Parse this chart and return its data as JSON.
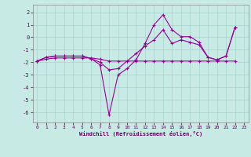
{
  "xlabel": "Windchill (Refroidissement éolien,°C)",
  "background_color": "#c8eae4",
  "grid_color": "#a8d4cc",
  "line_color": "#990099",
  "xlim": [
    -0.5,
    23.5
  ],
  "ylim": [
    -6.8,
    2.6
  ],
  "yticks": [
    -6,
    -5,
    -4,
    -3,
    -2,
    -1,
    0,
    1,
    2
  ],
  "xticks": [
    0,
    1,
    2,
    3,
    4,
    5,
    6,
    7,
    8,
    9,
    10,
    11,
    12,
    13,
    14,
    15,
    16,
    17,
    18,
    19,
    20,
    21,
    22,
    23
  ],
  "curve1_x": [
    0,
    1,
    2,
    3,
    4,
    5,
    6,
    7,
    8,
    9,
    10,
    11,
    12,
    13,
    14,
    15,
    16,
    17,
    18,
    19,
    20,
    21,
    22
  ],
  "curve1_y": [
    -1.9,
    -1.75,
    -1.65,
    -1.65,
    -1.65,
    -1.65,
    -1.65,
    -1.75,
    -1.9,
    -1.9,
    -1.9,
    -1.9,
    -1.9,
    -1.9,
    -1.9,
    -1.9,
    -1.9,
    -1.9,
    -1.9,
    -1.9,
    -1.9,
    -1.9,
    -1.9
  ],
  "curve2_x": [
    0,
    1,
    2,
    3,
    4,
    5,
    6,
    7,
    8,
    9,
    10,
    11,
    12,
    13,
    14,
    15,
    16,
    17,
    18,
    19,
    20,
    21,
    22
  ],
  "curve2_y": [
    -1.9,
    -1.6,
    -1.5,
    -1.5,
    -1.5,
    -1.5,
    -1.7,
    -2.0,
    -2.6,
    -2.5,
    -1.9,
    -1.3,
    -0.7,
    -0.2,
    0.6,
    -0.5,
    -0.2,
    -0.4,
    -0.6,
    -1.6,
    -1.8,
    -1.5,
    0.8
  ],
  "curve3_x": [
    0,
    1,
    2,
    3,
    4,
    5,
    6,
    7,
    8,
    9,
    10,
    11,
    12,
    13,
    14,
    15,
    16,
    17,
    18,
    19,
    20,
    21,
    22
  ],
  "curve3_y": [
    -1.9,
    -1.6,
    -1.5,
    -1.5,
    -1.5,
    -1.5,
    -1.7,
    -2.2,
    -6.2,
    -3.0,
    -2.5,
    -1.8,
    -0.5,
    1.0,
    1.8,
    0.6,
    0.05,
    0.05,
    -0.4,
    -1.6,
    -1.8,
    -1.5,
    0.8
  ]
}
